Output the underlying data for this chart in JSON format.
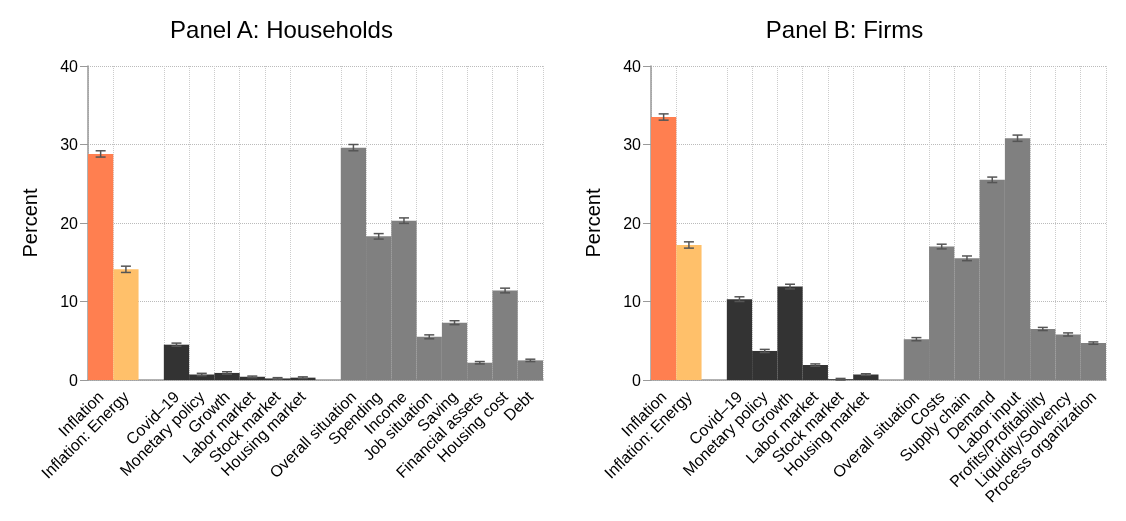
{
  "chart_data": [
    {
      "type": "bar",
      "title": "Panel A: Households",
      "ylabel": "Percent",
      "categories": [
        "Inflation",
        "Inflation: Energy",
        null,
        "Covid–19",
        "Monetary policy",
        "Growth",
        "Labor market",
        "Stock market",
        "Housing market",
        null,
        "Overall situation",
        "Spending",
        "Income",
        "Job situation",
        "Saving",
        "Financial assets",
        "Housing cost",
        "Debt"
      ],
      "values": [
        28.8,
        14.1,
        null,
        4.5,
        0.7,
        0.9,
        0.4,
        0.2,
        0.3,
        null,
        29.6,
        18.3,
        20.3,
        5.5,
        7.3,
        2.2,
        11.4,
        2.5
      ],
      "errors": [
        0.4,
        0.4,
        null,
        0.2,
        0.15,
        0.15,
        0.1,
        0.1,
        0.1,
        null,
        0.4,
        0.35,
        0.35,
        0.25,
        0.25,
        0.15,
        0.3,
        0.15
      ],
      "colors": [
        "#ff7f50",
        "#ffc06a",
        null,
        "#333333",
        "#333333",
        "#333333",
        "#333333",
        "#333333",
        "#333333",
        null,
        "#808080",
        "#808080",
        "#808080",
        "#808080",
        "#808080",
        "#808080",
        "#808080",
        "#808080"
      ],
      "ylim": [
        0,
        40
      ],
      "yticks": [
        0,
        10,
        20,
        30,
        40
      ],
      "grid": true
    },
    {
      "type": "bar",
      "title": "Panel B: Firms",
      "ylabel": "Percent",
      "categories": [
        "Inflation",
        "Inflation: Energy",
        null,
        "Covid–19",
        "Monetary policy",
        "Growth",
        "Labor market",
        "Stock market",
        "Housing market",
        null,
        "Overall situation",
        "Costs",
        "Supply chain",
        "Demand",
        "Labor input",
        "Profits/Profitability",
        "Liquidity/Solvency",
        "Process organization"
      ],
      "values": [
        33.5,
        17.2,
        null,
        10.3,
        3.7,
        11.9,
        1.9,
        0.1,
        0.7,
        null,
        5.2,
        17.0,
        15.5,
        25.5,
        30.8,
        6.5,
        5.8,
        4.7
      ],
      "errors": [
        0.4,
        0.4,
        null,
        0.3,
        0.2,
        0.3,
        0.15,
        0.1,
        0.1,
        null,
        0.2,
        0.3,
        0.3,
        0.35,
        0.4,
        0.2,
        0.2,
        0.15
      ],
      "colors": [
        "#ff7f50",
        "#ffc06a",
        null,
        "#333333",
        "#333333",
        "#333333",
        "#333333",
        "#333333",
        "#333333",
        null,
        "#808080",
        "#808080",
        "#808080",
        "#808080",
        "#808080",
        "#808080",
        "#808080",
        "#808080"
      ],
      "ylim": [
        0,
        40
      ],
      "yticks": [
        0,
        10,
        20,
        30,
        40
      ],
      "grid": true
    }
  ]
}
